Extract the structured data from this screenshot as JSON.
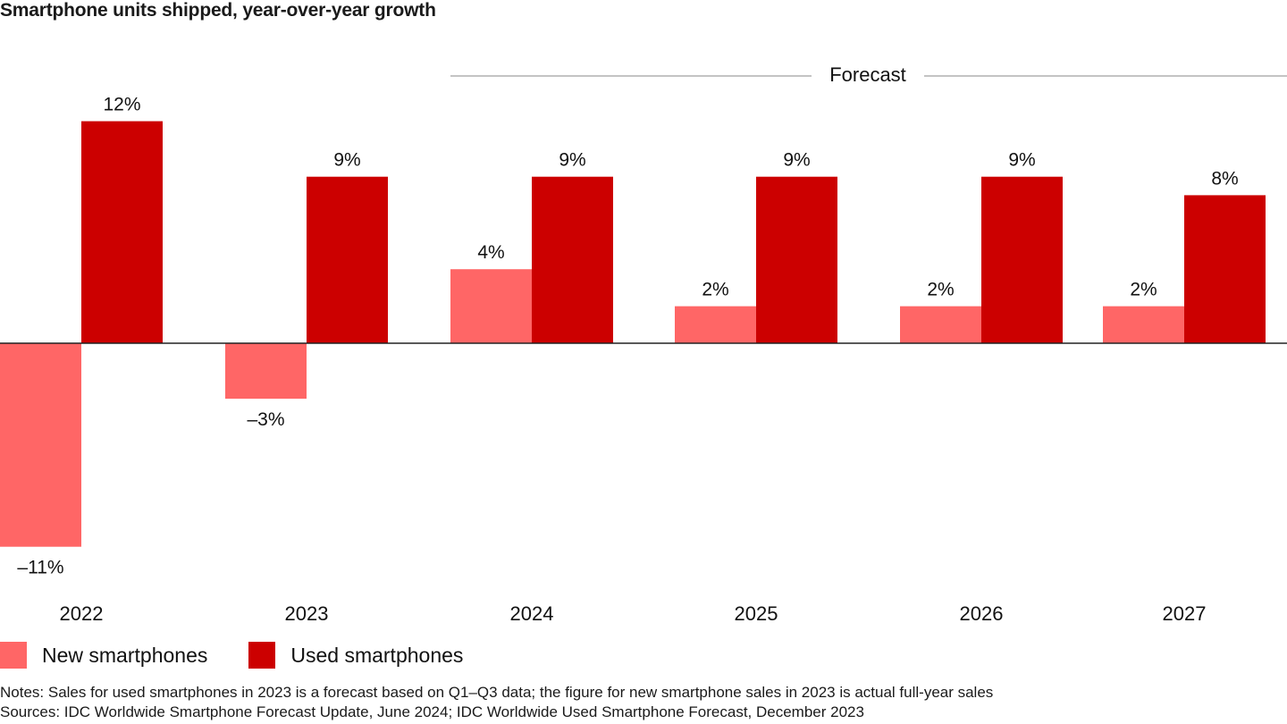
{
  "colors": {
    "new": "#ff6666",
    "used": "#cc0000",
    "axis": "#222222",
    "forecast_line": "#888888"
  },
  "chart_data": {
    "type": "bar",
    "title": "Smartphone units shipped, year-over-year growth",
    "categories": [
      "2022",
      "2023",
      "2024",
      "2025",
      "2026",
      "2027"
    ],
    "series": [
      {
        "name": "New smartphones",
        "values": [
          -11,
          -3,
          4,
          2,
          2,
          2
        ],
        "labels": [
          "–11%",
          "–3%",
          "4%",
          "2%",
          "2%",
          "2%"
        ]
      },
      {
        "name": "Used smartphones",
        "values": [
          12,
          9,
          9,
          9,
          9,
          8
        ],
        "labels": [
          "12%",
          "9%",
          "9%",
          "9%",
          "9%",
          "8%"
        ]
      }
    ],
    "xlabel": "",
    "ylabel": "",
    "ylim": [
      -11,
      12
    ],
    "grid": false,
    "annotations": [
      {
        "text": "Forecast",
        "spans": [
          "2024",
          "2027"
        ]
      }
    ],
    "legend_placement": "bottom-left"
  },
  "legend": {
    "items": [
      {
        "label": "New smartphones",
        "key": "new"
      },
      {
        "label": "Used smartphones",
        "key": "used"
      }
    ]
  },
  "footer": {
    "notes": "Notes: Sales for used smartphones in 2023 is a forecast based on Q1–Q3 data; the figure for new smartphone sales in 2023 is actual full-year sales",
    "sources": "Sources: IDC Worldwide Smartphone Forecast Update, June 2024; IDC Worldwide Used Smartphone Forecast, December 2023"
  }
}
